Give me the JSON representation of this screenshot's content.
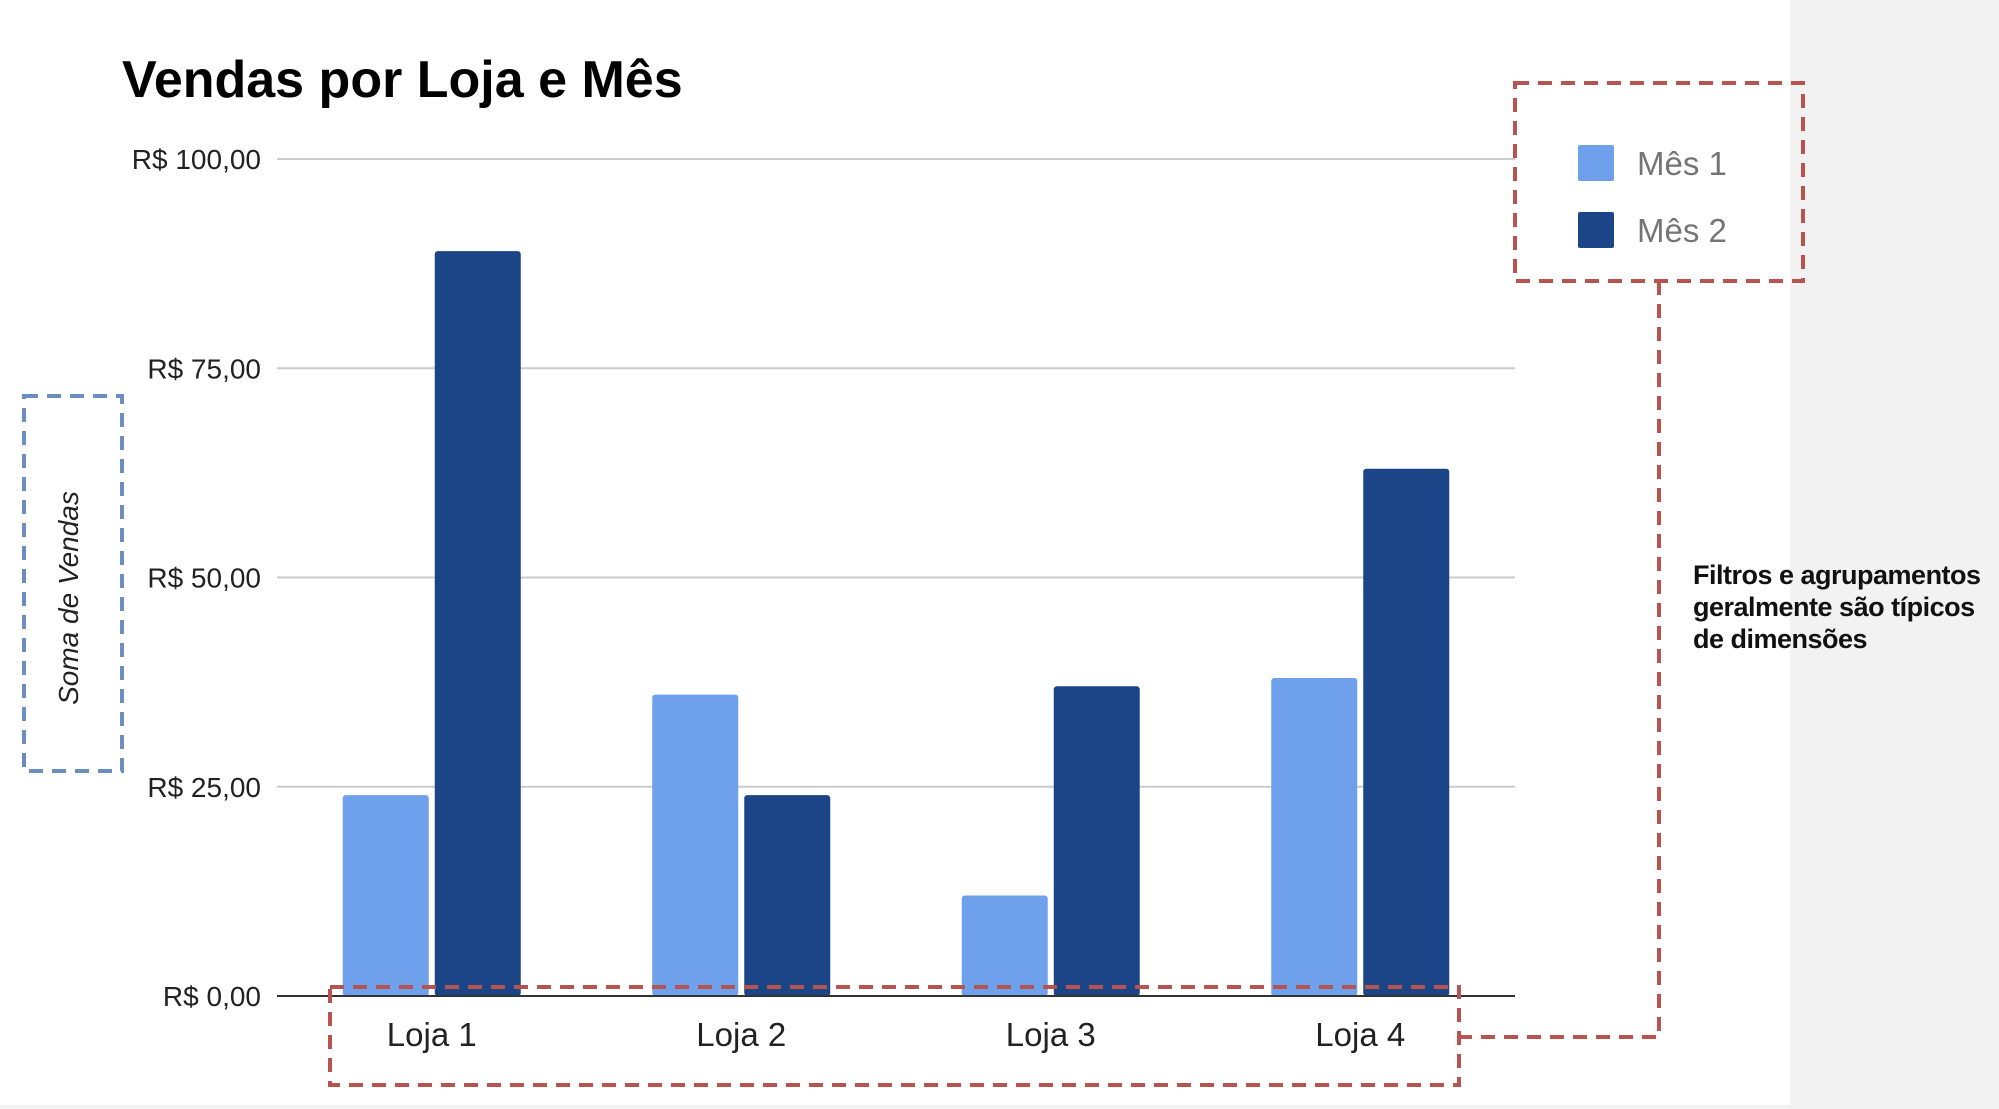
{
  "chart_data": {
    "type": "bar",
    "title": "Vendas por Loja e Mês",
    "ylabel": "Soma de Vendas",
    "xlabel": "",
    "categories": [
      "Loja 1",
      "Loja 2",
      "Loja 3",
      "Loja 4"
    ],
    "series": [
      {
        "name": "Mês 1",
        "color": "#6fa0ec",
        "values": [
          24,
          36,
          12,
          38
        ]
      },
      {
        "name": "Mês 2",
        "color": "#1c4587",
        "values": [
          89,
          24,
          37,
          63
        ]
      }
    ],
    "ylim": [
      0,
      100
    ],
    "yticks": [
      {
        "value": 0,
        "label": "R$ 0,00"
      },
      {
        "value": 25,
        "label": "R$ 25,00"
      },
      {
        "value": 50,
        "label": "R$ 50,00"
      },
      {
        "value": 75,
        "label": "R$ 75,00"
      },
      {
        "value": 100,
        "label": "R$ 100,00"
      }
    ],
    "grid": true,
    "legend_position": "top-right",
    "annotations": [
      {
        "text_lines": [
          "Filtros e agrupamentos",
          "geralmente são típicos",
          "de dimensões"
        ]
      }
    ]
  },
  "colors": {
    "annotation_red": "#b85450",
    "annotation_blue": "#6c8ebf",
    "gridline": "#cccccc",
    "axis": "#333333"
  }
}
